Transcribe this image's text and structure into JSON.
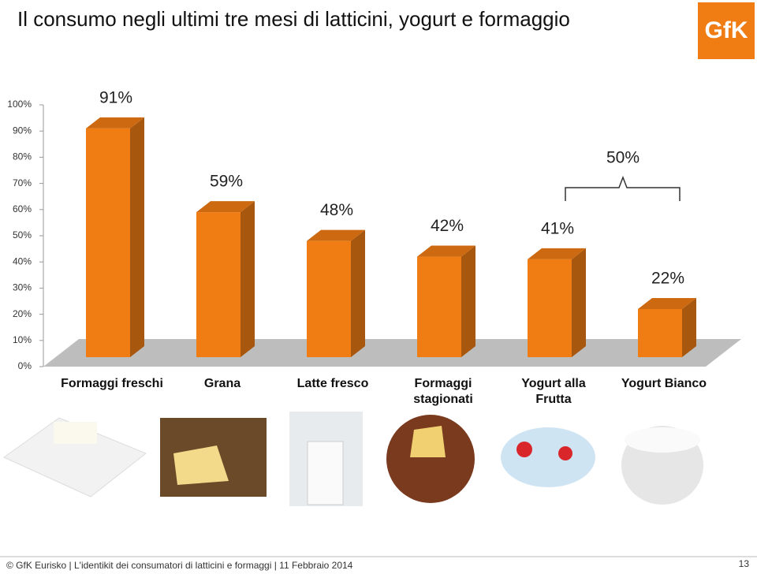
{
  "chart_data": {
    "type": "bar3d",
    "title": "Il consumo negli ultimi tre mesi di latticini, yogurt e formaggio",
    "logo": "GfK",
    "categories": [
      "Formaggi freschi",
      "Grana",
      "Latte fresco",
      "Formaggi stagionati",
      "Yogurt alla Frutta",
      "Yogurt Bianco"
    ],
    "values": [
      91,
      59,
      48,
      42,
      41,
      22
    ],
    "value_labels": [
      "91%",
      "59%",
      "48%",
      "42%",
      "41%",
      "22%"
    ],
    "color": "#f07c14",
    "ylim": [
      0,
      100
    ],
    "yticks": [
      {
        "value": 0,
        "label": "0%"
      },
      {
        "value": 10,
        "label": "10%"
      },
      {
        "value": 20,
        "label": "20%"
      },
      {
        "value": 30,
        "label": "30%"
      },
      {
        "value": 40,
        "label": "40%"
      },
      {
        "value": 50,
        "label": "50%"
      },
      {
        "value": 60,
        "label": "60%"
      },
      {
        "value": 70,
        "label": "70%"
      },
      {
        "value": 80,
        "label": "80%"
      },
      {
        "value": 90,
        "label": "90%"
      },
      {
        "value": 100,
        "label": "100%"
      }
    ],
    "bracket_label": "50%",
    "footer": "© GfK Eurisko | L'identikit dei consumatori di latticini e formaggi | 11 Febbraio 2014",
    "page_number": "13"
  }
}
